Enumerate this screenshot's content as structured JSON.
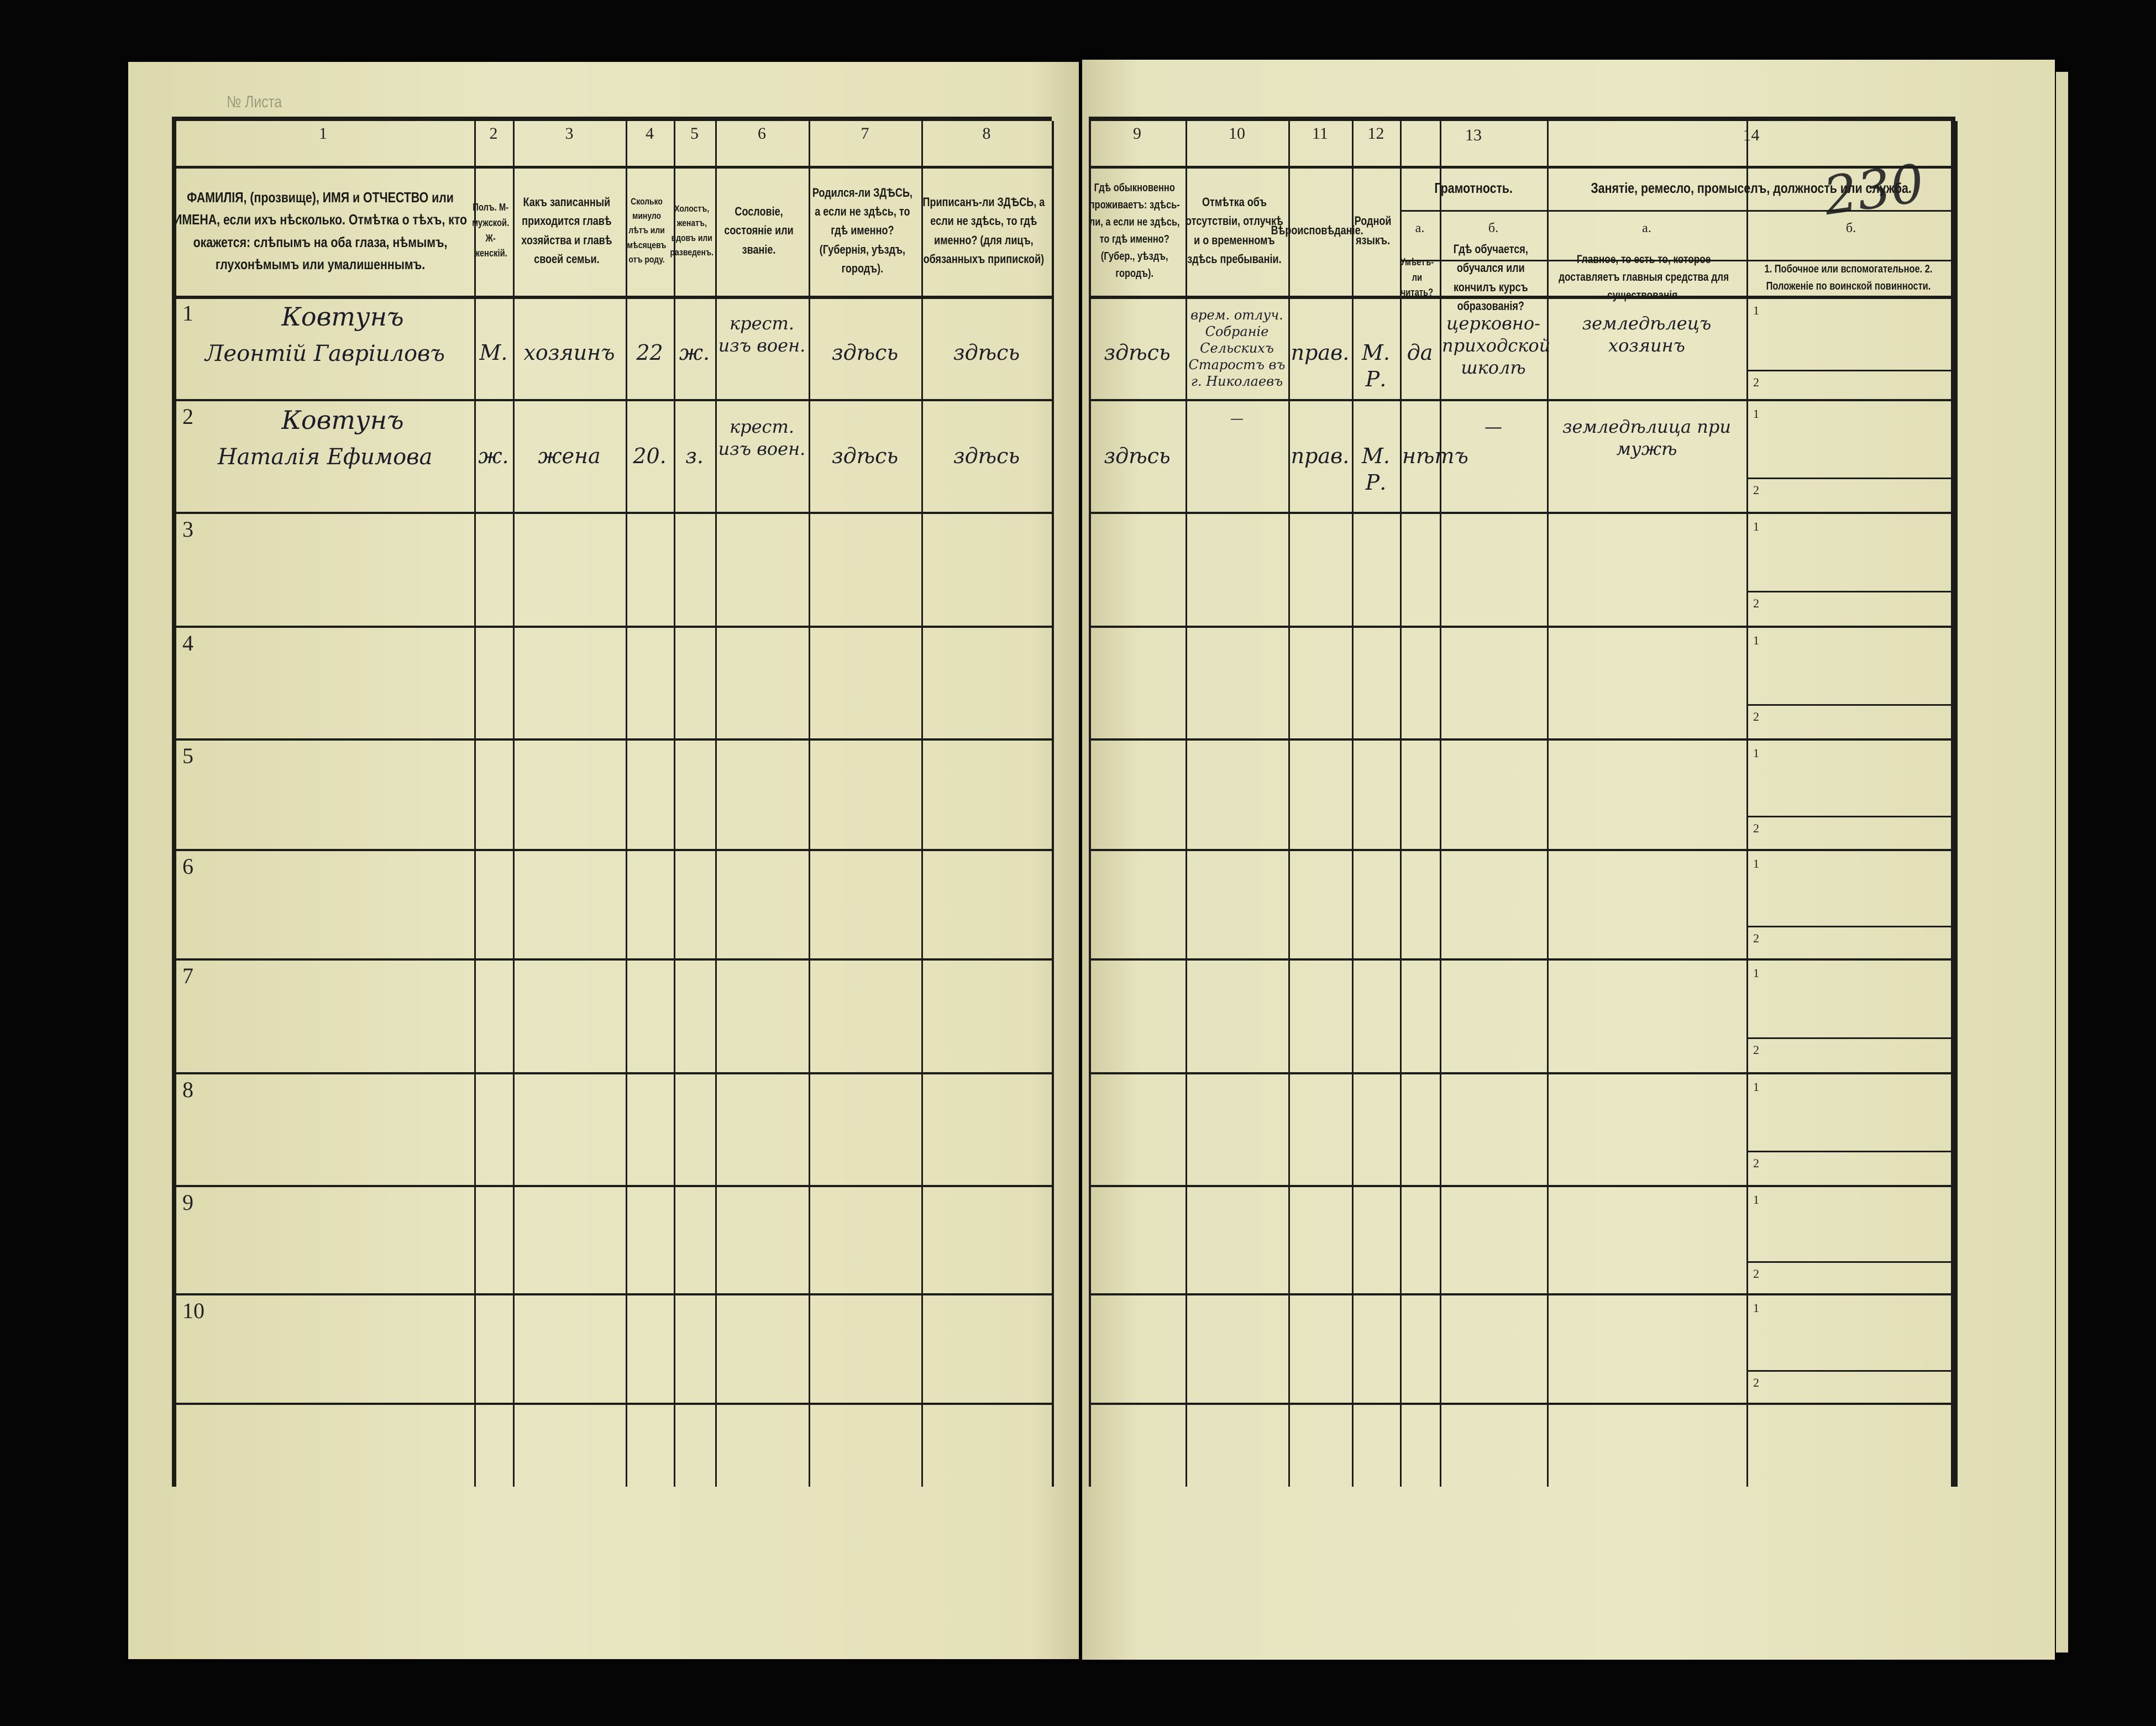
{
  "document": {
    "sheet_number_handwritten": "230",
    "stamp_label": "№ Листа",
    "columns": [
      {
        "num": "1",
        "header": "ФАМИЛІЯ, (прозвище), ИМЯ и ОТЧЕСТВО или ИМЕНА, если ихъ нѣсколько. Отмѣтка о тѣхъ, кто окажется: слѣпымъ на оба глаза, нѣмымъ, глухонѣмымъ или умалишеннымъ."
      },
      {
        "num": "2",
        "header": "Полъ. М-мужской. Ж-женскій."
      },
      {
        "num": "3",
        "header": "Какъ записанный приходится главѣ хозяйства и главѣ своей семьи."
      },
      {
        "num": "4",
        "header": "Сколько минуло лѣтъ или мѣсяцевъ отъ роду."
      },
      {
        "num": "5",
        "header": "Холостъ, женатъ, вдовъ или разведенъ."
      },
      {
        "num": "6",
        "header": "Сословіе, состояніе или званіе."
      },
      {
        "num": "7",
        "header": "Родился-ли ЗДѢСЬ, а если не здѣсь, то гдѣ именно? (Губернія, уѣздъ, городъ)."
      },
      {
        "num": "8",
        "header": "Приписанъ-ли ЗДѢСЬ, а если не здѣсь, то гдѣ именно? (для лицъ, обязанныхъ припиской)"
      },
      {
        "num": "9",
        "header": "Гдѣ обыкновенно проживаетъ: здѣсь-ли, а если не здѣсь, то гдѣ именно? (Губер., уѣздъ, городъ)."
      },
      {
        "num": "10",
        "header": "Отмѣтка объ отсутствіи, отлучкѣ и о временномъ здѣсь пребываніи."
      },
      {
        "num": "11",
        "header": "Вѣроисповѣданіе."
      },
      {
        "num": "12",
        "header": "Родной языкъ."
      },
      {
        "num": "13a",
        "header": "Умѣетъ-ли читать?"
      },
      {
        "num": "13b",
        "header": "Гдѣ обучается, обучался или кончилъ курсъ образованія?"
      },
      {
        "num": "14a",
        "header": "Главное, то есть то, которое доставляетъ главныя средства для существованія."
      },
      {
        "num": "14b",
        "header": "1. Побочное или вспомогательное. 2. Положеніе по воинской повинности."
      }
    ],
    "group_headers": {
      "13": {
        "num": "13",
        "title": "Грамотность.",
        "sub_a": "а.",
        "sub_b": "б."
      },
      "14": {
        "num": "14",
        "title": "Занятіе, ремесло, промыселъ, должность или служба.",
        "sub_a": "а.",
        "sub_b": "б."
      }
    },
    "sub_labels": [
      "1",
      "2"
    ],
    "rows": [
      {
        "n": "1",
        "surname": "Ковтунъ",
        "name": "Леонтій Гавріиловъ",
        "sex": "М.",
        "relation": "хозяинъ",
        "age": "22",
        "marital": "ж.",
        "estate": "крест. изъ воен.",
        "born": "здѣсь",
        "registered": "здѣсь",
        "resides": "здѣсь",
        "absence": "врем. отлуч. Собраніе Сельскихъ Старостъ въ г. Николаевъ",
        "religion": "прав.",
        "language": "М. Р.",
        "literate": "да",
        "education": "церковно-приходской школѣ",
        "occupation": "земледѣлецъ хозяинъ"
      },
      {
        "n": "2",
        "surname": "Ковтунъ",
        "name": "Наталія Ефимова",
        "sex": "ж.",
        "relation": "жена",
        "age": "20.",
        "marital": "з.",
        "estate": "крест. изъ воен.",
        "born": "здѣсь",
        "registered": "здѣсь",
        "resides": "здѣсь",
        "absence": "—",
        "religion": "прав.",
        "language": "М. Р.",
        "literate": "нѣтъ",
        "education": "—",
        "occupation": "земледѣлица при мужѣ"
      },
      {
        "n": "3"
      },
      {
        "n": "4"
      },
      {
        "n": "5"
      },
      {
        "n": "6"
      },
      {
        "n": "7"
      },
      {
        "n": "8"
      },
      {
        "n": "9"
      },
      {
        "n": "10"
      }
    ]
  }
}
